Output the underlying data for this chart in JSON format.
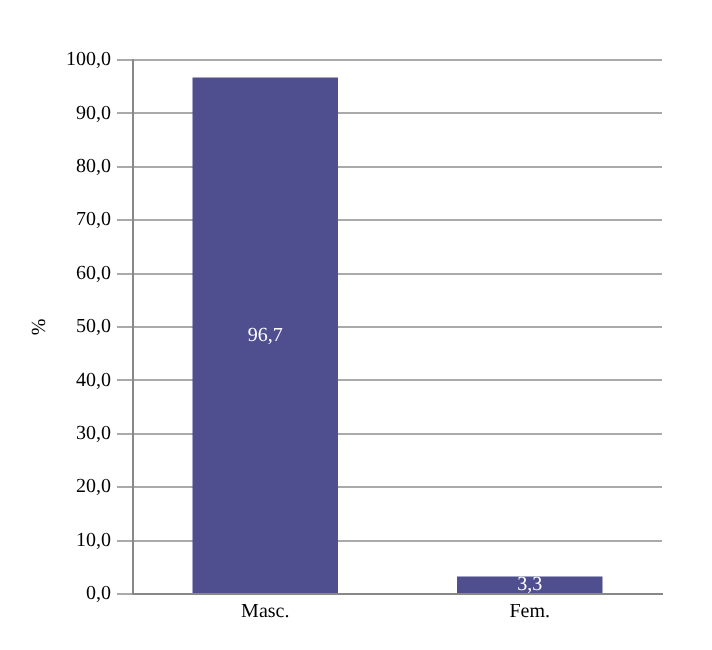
{
  "chart_data": {
    "type": "bar",
    "ylabel": "%",
    "categories": [
      "Masc.",
      "Fem."
    ],
    "values": [
      96.7,
      3.3
    ],
    "color": "#4f4f8f",
    "value_labels": [
      "96,7",
      "3,3"
    ],
    "ylim": [
      0,
      100
    ],
    "yticks": [
      {
        "value": 0,
        "label": "0,0"
      },
      {
        "value": 10,
        "label": "10,0"
      },
      {
        "value": 20,
        "label": "20,0"
      },
      {
        "value": 30,
        "label": "30,0"
      },
      {
        "value": 40,
        "label": "40,0"
      },
      {
        "value": 50,
        "label": "50,0"
      },
      {
        "value": 60,
        "label": "60,0"
      },
      {
        "value": 70,
        "label": "70,0"
      },
      {
        "value": 80,
        "label": "80,0"
      },
      {
        "value": 90,
        "label": "90,0"
      },
      {
        "value": 100,
        "label": "100,0"
      }
    ],
    "grid": "y"
  }
}
